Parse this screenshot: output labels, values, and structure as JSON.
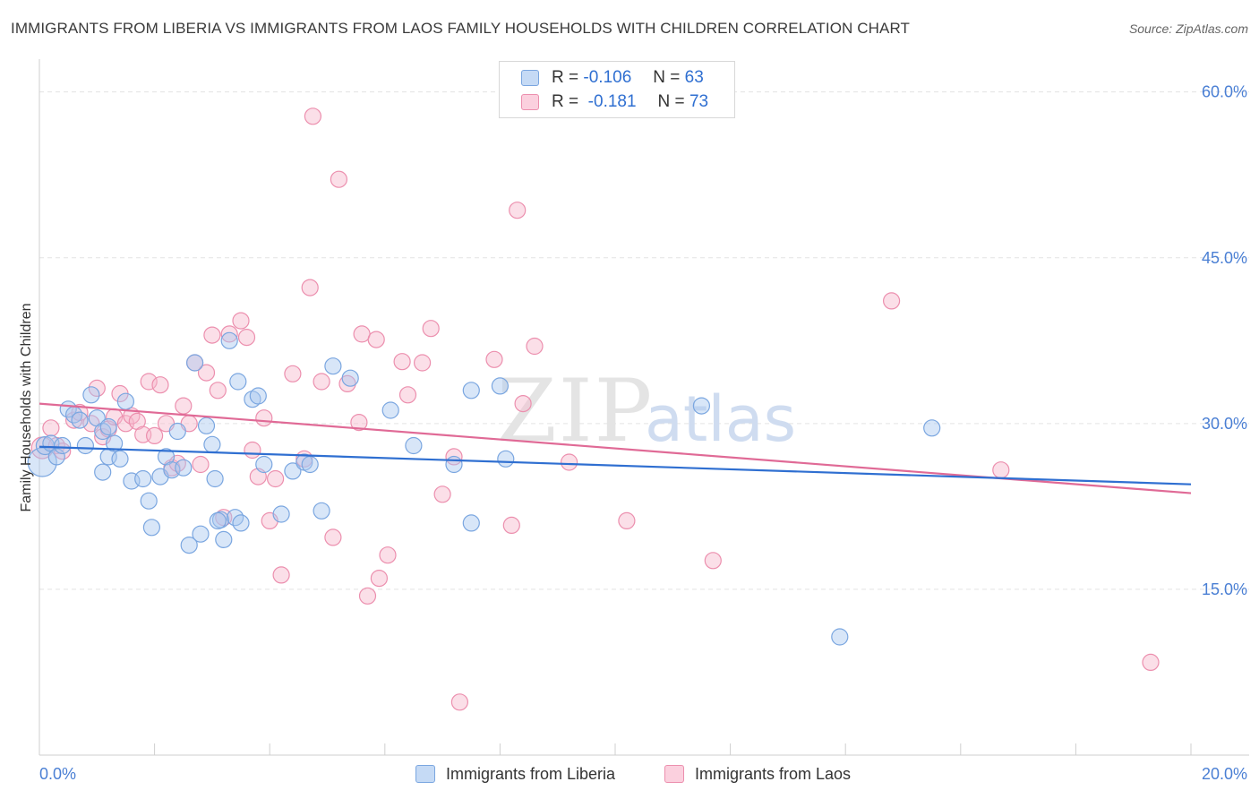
{
  "title": "IMMIGRANTS FROM LIBERIA VS IMMIGRANTS FROM LAOS FAMILY HOUSEHOLDS WITH CHILDREN CORRELATION CHART",
  "source": "Source: ZipAtlas.com",
  "watermark": {
    "zip": "ZIP",
    "atlas": "atlas"
  },
  "legend": {
    "rows": [
      {
        "r_label": "R =",
        "r_value": "-0.106",
        "n_label": "N =",
        "n_value": "63"
      },
      {
        "r_label": "R =",
        "r_value": "-0.181",
        "n_label": "N =",
        "n_value": "73"
      }
    ]
  },
  "bottom_legend": [
    "Immigrants from Liberia",
    "Immigrants from Laos"
  ],
  "colors": {
    "liberia_fill": "#a9c8f0",
    "liberia_stroke": "#7aa6e0",
    "liberia_line": "#2f6fd1",
    "laos_fill": "#f7b8cc",
    "laos_stroke": "#ec8fae",
    "laos_line": "#e06a96",
    "axis_text": "#4a7fd4"
  },
  "chart_data": {
    "type": "scatter",
    "title": "IMMIGRANTS FROM LIBERIA VS IMMIGRANTS FROM LAOS FAMILY HOUSEHOLDS WITH CHILDREN CORRELATION CHART",
    "xlabel": "",
    "ylabel": "Family Households with Children",
    "xlim": [
      0,
      20
    ],
    "ylim": [
      0,
      62
    ],
    "x_tick_labels": [
      "0.0%",
      "20.0%"
    ],
    "y_ticks": [
      15,
      30,
      45,
      60
    ],
    "y_tick_labels": [
      "15.0%",
      "30.0%",
      "45.0%",
      "60.0%"
    ],
    "series": [
      {
        "name": "Immigrants from Liberia",
        "r": -0.106,
        "n": 63,
        "trend": {
          "x": [
            0,
            20
          ],
          "y": [
            27.9,
            24.5
          ]
        },
        "points": [
          [
            0.05,
            26.5,
            16
          ],
          [
            0.1,
            28.0,
            10
          ],
          [
            0.2,
            28.2,
            9
          ],
          [
            0.3,
            27.0,
            9
          ],
          [
            0.4,
            28.0,
            9
          ],
          [
            0.5,
            31.3,
            9
          ],
          [
            0.6,
            30.8,
            9
          ],
          [
            0.7,
            30.3,
            9
          ],
          [
            0.8,
            28.0,
            9
          ],
          [
            0.9,
            32.6,
            9
          ],
          [
            1.0,
            30.5,
            9
          ],
          [
            1.1,
            29.3,
            9
          ],
          [
            1.2,
            29.7,
            9
          ],
          [
            1.1,
            25.6,
            9
          ],
          [
            1.2,
            27.0,
            9
          ],
          [
            1.3,
            28.2,
            9
          ],
          [
            1.4,
            26.8,
            9
          ],
          [
            1.5,
            32.0,
            9
          ],
          [
            1.6,
            24.8,
            9
          ],
          [
            1.8,
            25.0,
            9
          ],
          [
            1.9,
            23.0,
            9
          ],
          [
            1.95,
            20.6,
            9
          ],
          [
            2.1,
            25.2,
            9
          ],
          [
            2.2,
            27.0,
            9
          ],
          [
            2.3,
            25.8,
            9
          ],
          [
            2.4,
            29.3,
            9
          ],
          [
            2.5,
            26.0,
            9
          ],
          [
            2.6,
            19.0,
            9
          ],
          [
            2.7,
            35.5,
            9
          ],
          [
            2.8,
            20.0,
            9
          ],
          [
            2.9,
            29.8,
            9
          ],
          [
            3.0,
            28.1,
            9
          ],
          [
            3.05,
            25.0,
            9
          ],
          [
            3.15,
            21.3,
            9
          ],
          [
            3.1,
            21.2,
            9
          ],
          [
            3.2,
            19.5,
            9
          ],
          [
            3.3,
            37.5,
            9
          ],
          [
            3.4,
            21.5,
            9
          ],
          [
            3.5,
            21.0,
            9
          ],
          [
            3.45,
            33.8,
            9
          ],
          [
            3.7,
            32.2,
            9
          ],
          [
            3.8,
            32.5,
            9
          ],
          [
            3.9,
            26.3,
            9
          ],
          [
            4.2,
            21.8,
            9
          ],
          [
            4.4,
            25.7,
            9
          ],
          [
            4.6,
            26.5,
            9
          ],
          [
            4.7,
            26.3,
            9
          ],
          [
            4.9,
            22.1,
            9
          ],
          [
            5.1,
            35.2,
            9
          ],
          [
            5.4,
            34.1,
            9
          ],
          [
            6.1,
            31.2,
            9
          ],
          [
            6.5,
            28.0,
            9
          ],
          [
            7.2,
            26.3,
            9
          ],
          [
            7.5,
            33.0,
            9
          ],
          [
            7.5,
            21.0,
            9
          ],
          [
            8.0,
            33.4,
            9
          ],
          [
            8.1,
            26.8,
            9
          ],
          [
            11.5,
            31.6,
            9
          ],
          [
            13.9,
            10.7,
            9
          ],
          [
            15.5,
            29.6,
            9
          ]
        ]
      },
      {
        "name": "Immigrants from Laos",
        "r": -0.181,
        "n": 73,
        "trend": {
          "x": [
            0,
            20
          ],
          "y": [
            31.8,
            23.7
          ]
        },
        "points": [
          [
            0.05,
            27.8,
            12
          ],
          [
            0.2,
            29.6,
            9
          ],
          [
            0.3,
            28.0,
            9
          ],
          [
            0.4,
            27.5,
            9
          ],
          [
            0.6,
            30.3,
            9
          ],
          [
            0.7,
            31.0,
            9
          ],
          [
            0.9,
            30.0,
            9
          ],
          [
            1.0,
            33.2,
            9
          ],
          [
            1.1,
            28.8,
            9
          ],
          [
            1.2,
            29.5,
            9
          ],
          [
            1.3,
            30.6,
            9
          ],
          [
            1.4,
            32.7,
            9
          ],
          [
            1.5,
            30.0,
            9
          ],
          [
            1.6,
            30.7,
            9
          ],
          [
            1.7,
            30.2,
            9
          ],
          [
            1.8,
            29.0,
            9
          ],
          [
            1.9,
            33.8,
            9
          ],
          [
            2.0,
            28.9,
            9
          ],
          [
            2.1,
            33.5,
            9
          ],
          [
            2.2,
            30.0,
            9
          ],
          [
            2.3,
            26.0,
            9
          ],
          [
            2.4,
            26.4,
            9
          ],
          [
            2.5,
            31.6,
            9
          ],
          [
            2.6,
            30.0,
            9
          ],
          [
            2.7,
            35.5,
            9
          ],
          [
            2.8,
            26.3,
            9
          ],
          [
            2.9,
            34.6,
            9
          ],
          [
            3.0,
            38.0,
            9
          ],
          [
            3.1,
            33.0,
            9
          ],
          [
            3.2,
            21.5,
            9
          ],
          [
            3.3,
            38.1,
            9
          ],
          [
            3.5,
            39.3,
            9
          ],
          [
            3.6,
            37.8,
            9
          ],
          [
            3.7,
            27.6,
            9
          ],
          [
            3.8,
            25.2,
            9
          ],
          [
            3.9,
            30.5,
            9
          ],
          [
            4.0,
            21.2,
            9
          ],
          [
            4.1,
            25.0,
            9
          ],
          [
            4.2,
            16.3,
            9
          ],
          [
            4.4,
            34.5,
            9
          ],
          [
            4.6,
            26.8,
            9
          ],
          [
            4.7,
            42.3,
            9
          ],
          [
            4.75,
            57.8,
            9
          ],
          [
            4.9,
            33.8,
            9
          ],
          [
            5.1,
            19.7,
            9
          ],
          [
            5.2,
            52.1,
            9
          ],
          [
            5.35,
            33.6,
            9
          ],
          [
            5.55,
            30.1,
            9
          ],
          [
            5.6,
            38.1,
            9
          ],
          [
            5.7,
            14.4,
            9
          ],
          [
            5.85,
            37.6,
            9
          ],
          [
            5.9,
            16.0,
            9
          ],
          [
            6.05,
            18.1,
            9
          ],
          [
            6.3,
            35.6,
            9
          ],
          [
            6.4,
            32.6,
            9
          ],
          [
            6.65,
            35.5,
            9
          ],
          [
            6.8,
            38.6,
            9
          ],
          [
            7.0,
            23.6,
            9
          ],
          [
            7.2,
            27.0,
            9
          ],
          [
            7.3,
            4.8,
            9
          ],
          [
            7.9,
            35.8,
            9
          ],
          [
            8.2,
            20.8,
            9
          ],
          [
            8.3,
            49.3,
            9
          ],
          [
            8.4,
            31.8,
            9
          ],
          [
            8.6,
            37.0,
            9
          ],
          [
            9.2,
            26.5,
            9
          ],
          [
            10.2,
            21.2,
            9
          ],
          [
            11.7,
            17.6,
            9
          ],
          [
            14.8,
            41.1,
            9
          ],
          [
            16.7,
            25.8,
            9
          ],
          [
            19.3,
            8.4,
            9
          ]
        ]
      }
    ]
  }
}
